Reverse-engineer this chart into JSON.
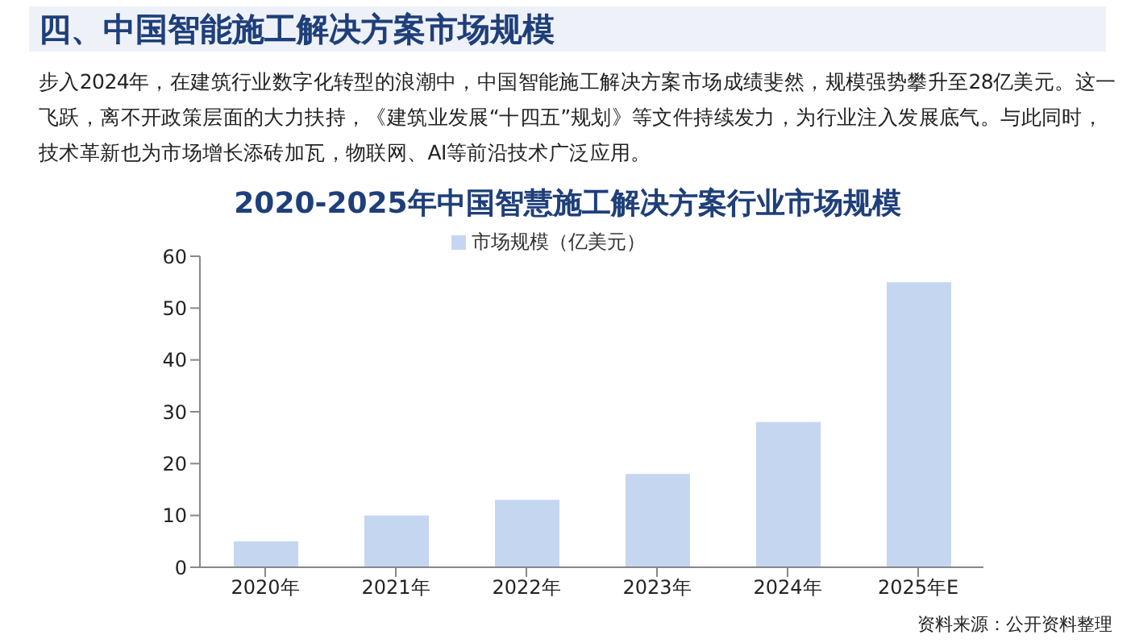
{
  "chart_data": {
    "type": "bar",
    "title": "2020-2025年中国智慧施工解决方案行业市场规模",
    "annotations": [
      "四、中国智能施工解决方案市场规模",
      "步入2024年，在建筑行业数字化转型的浪潮中，中国智能施工解决方案市场成绩斐然，规模强势攀升至28亿美元。这一飞跃，离不开政策层面的大力扶持，《建筑业发展“十四五”规划》等文件持续发力，为行业注入发展底气。与此同时，技术革新也为市场增长添砖加瓦，物联网、AI等前沿技术广泛应用。",
      "资料来源：公开资料整理"
    ],
    "categories": [
      "2020年",
      "2021年",
      "2022年",
      "2023年",
      "2024年",
      "2025年E"
    ],
    "series": [
      {
        "name": "市场规模（亿美元）",
        "color": "#c5d6f0",
        "values": [
          5,
          10,
          13,
          18,
          28,
          55
        ]
      }
    ],
    "ylim": [
      0,
      60
    ],
    "yticks": [
      0,
      10,
      20,
      30,
      40,
      50,
      60
    ],
    "grid": false,
    "legend": "top"
  }
}
